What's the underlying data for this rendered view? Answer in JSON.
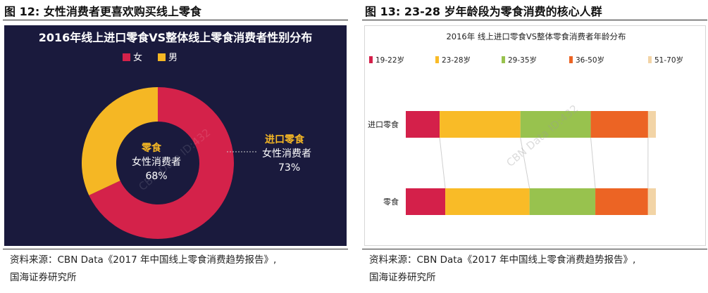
{
  "figure12": {
    "label": "图 12:",
    "title": "女性消费者更喜欢购买线上零食",
    "source_line1": "资料来源：CBN Data《2017 年中国线上零食消费趋势报告》,",
    "source_line2": "国海证券研究所"
  },
  "figure13": {
    "label": "图 13:",
    "title": "23-28 岁年龄段为零食消费的核心人群",
    "source_line1": "资料来源：CBN Data《2017 年中国线上零食消费趋势报告》,",
    "source_line2": "国海证券研究所"
  },
  "chart_data": [
    {
      "type": "pie",
      "title": "2016年线上进口零食VS整体线上零食消费者性别分布",
      "legend": [
        "女",
        "男"
      ],
      "colors": {
        "女": "#d4224a",
        "男": "#f5b724"
      },
      "rings": [
        {
          "name": "零食",
          "female_share": 68,
          "label_line1": "零食",
          "label_line2": "女性消费者",
          "label_value": "68%"
        },
        {
          "name": "进口零食",
          "female_share": 73,
          "label_line1": "进口零食",
          "label_line2": "女性消费者",
          "label_value": "73%"
        }
      ],
      "legend_position": "top"
    },
    {
      "type": "bar",
      "orientation": "horizontal-stacked",
      "title": "2016年 线上进口零食VS整体零食消费者年龄分布",
      "legend_position": "top",
      "series_names": [
        "19-22岁",
        "23-28岁",
        "29-35岁",
        "36-50岁",
        "51-70岁"
      ],
      "colors": [
        "#d4204a",
        "#f9bb27",
        "#98c24e",
        "#ec6424",
        "#f2d4a6"
      ],
      "categories": [
        "进口零食",
        "零食"
      ],
      "values": {
        "进口零食": [
          13,
          31,
          27,
          22,
          3
        ],
        "零食": [
          15,
          32,
          25,
          20,
          3
        ]
      },
      "xlim": [
        0,
        100
      ]
    }
  ],
  "watermark": "CBN Data ID:432"
}
